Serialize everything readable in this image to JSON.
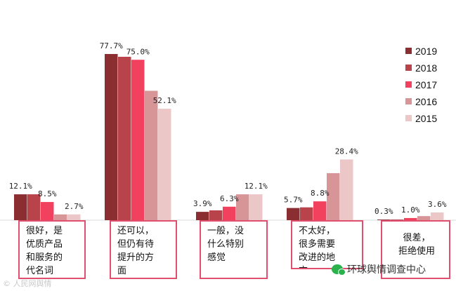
{
  "chart_data": {
    "type": "bar",
    "categories": [
      "很好，是优质产品和服务的代名词",
      "还可以，但仍有待提升的方面",
      "一般，没什么特别感觉",
      "不太好，很多需要改进的地方",
      "很差，拒绝使用"
    ],
    "category_lines": [
      [
        "很好，是",
        "优质产品",
        "和服务的",
        "代名词"
      ],
      [
        "还可以，",
        "但仍有待",
        "提升的方",
        "面"
      ],
      [
        "一般，没",
        "什么特别",
        "感觉"
      ],
      [
        "不太好，",
        "很多需要",
        "改进的地",
        "方"
      ],
      [
        "很差，",
        "拒绝使用"
      ]
    ],
    "series": [
      {
        "name": "2019",
        "color": "#8b2e32",
        "values": [
          12.1,
          77.7,
          3.9,
          5.7,
          0.3
        ]
      },
      {
        "name": "2018",
        "color": "#b8434a",
        "values": [
          12.1,
          76.4,
          4.6,
          6.0,
          0.3
        ]
      },
      {
        "name": "2017",
        "color": "#f2405f",
        "values": [
          8.5,
          75.0,
          6.3,
          8.8,
          1.0
        ]
      },
      {
        "name": "2016",
        "color": "#d89598",
        "values": [
          2.7,
          60.5,
          12.1,
          22.0,
          1.9
        ]
      },
      {
        "name": "2015",
        "color": "#ebc7c8",
        "values": [
          2.7,
          52.1,
          12.1,
          28.4,
          3.6
        ]
      }
    ],
    "data_labels": [
      {
        "category": 0,
        "series": 0,
        "text": "12.1%"
      },
      {
        "category": 0,
        "series": 2,
        "text": "8.5%"
      },
      {
        "category": 0,
        "series": 4,
        "text": "2.7%"
      },
      {
        "category": 1,
        "series": 0,
        "text": "77.7%"
      },
      {
        "category": 1,
        "series": 2,
        "text": "75.0%"
      },
      {
        "category": 1,
        "series": 4,
        "text": "52.1%"
      },
      {
        "category": 2,
        "series": 0,
        "text": "3.9%"
      },
      {
        "category": 2,
        "series": 2,
        "text": "6.3%"
      },
      {
        "category": 2,
        "series": 4,
        "text": "12.1%"
      },
      {
        "category": 3,
        "series": 0,
        "text": "5.7%"
      },
      {
        "category": 3,
        "series": 2,
        "text": "8.8%"
      },
      {
        "category": 3,
        "series": 4,
        "text": "28.4%"
      },
      {
        "category": 4,
        "series": 0,
        "text": "0.3%"
      },
      {
        "category": 4,
        "series": 2,
        "text": "1.0%"
      },
      {
        "category": 4,
        "series": 4,
        "text": "3.6%"
      }
    ],
    "legend_placement": "top-right",
    "ylim": [
      0,
      100
    ],
    "grid": false,
    "title": "",
    "xlabel": "",
    "ylabel": ""
  },
  "watermarks": {
    "left": "© 人民网舆情",
    "right": "环球舆情调查中心"
  }
}
